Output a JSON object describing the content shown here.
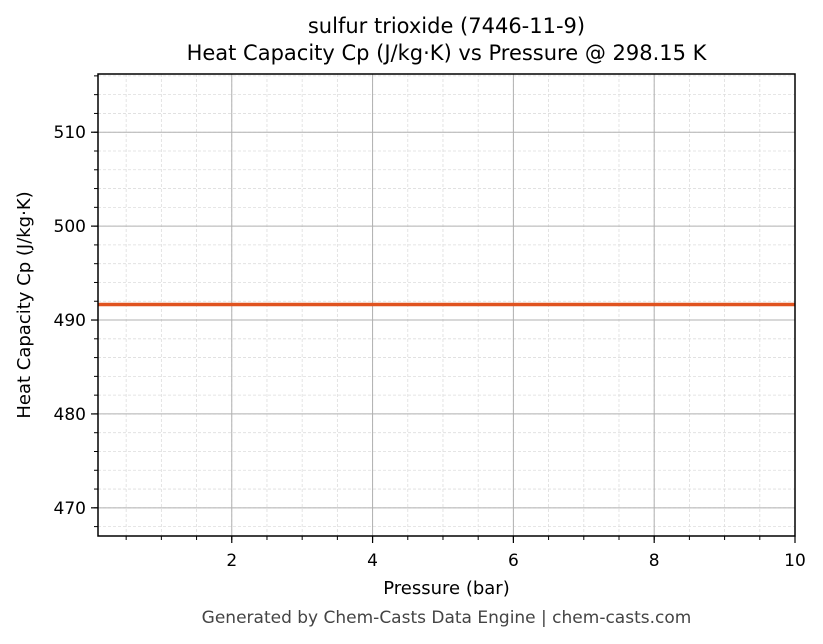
{
  "title_line1": "sulfur trioxide (7446-11-9)",
  "title_line2": "Heat Capacity Cp (J/kg·K) vs Pressure @ 298.15 K",
  "footer": "Generated by Chem-Casts Data Engine | chem-casts.com",
  "colors": {
    "line": "#E05320",
    "grid_major": "#b0b0b0",
    "grid_minor": "#dddddd",
    "axes": "#000000"
  },
  "chart_data": {
    "type": "line",
    "title": "sulfur trioxide (7446-11-9) Heat Capacity Cp (J/kg·K) vs Pressure @ 298.15 K",
    "xlabel": "Pressure (bar)",
    "ylabel": "Heat Capacity Cp (J/kg·K)",
    "xlim": [
      0.1,
      10
    ],
    "ylim": [
      467.0,
      516.2
    ],
    "xticks": [
      2,
      4,
      6,
      8,
      10
    ],
    "yticks": [
      470,
      480,
      490,
      500,
      510
    ],
    "x_minor_step": 0.5,
    "y_minor_step": 2,
    "grid": true,
    "legend": null,
    "series": [
      {
        "name": "Cp",
        "x": [
          0.1,
          1,
          2,
          3,
          4,
          5,
          6,
          7,
          8,
          9,
          10
        ],
        "values": [
          491.65,
          491.65,
          491.65,
          491.65,
          491.65,
          491.65,
          491.65,
          491.65,
          491.65,
          491.65,
          491.65
        ]
      }
    ]
  }
}
